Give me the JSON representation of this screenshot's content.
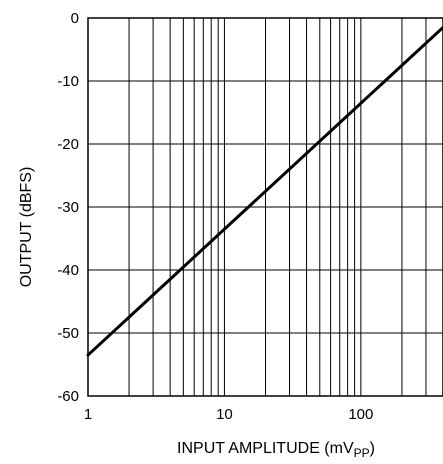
{
  "chart_data": {
    "type": "line",
    "x_scale": "log",
    "xlim": [
      1,
      400
    ],
    "ylim": [
      -60,
      0
    ],
    "grid": true,
    "xlabel_main": "INPUT AMPLITUDE (mV",
    "xlabel_sub": "PP",
    "xlabel_close": ")",
    "ylabel": "OUTPUT (dBFS)",
    "x_ticks": [
      1,
      10,
      100
    ],
    "x_tick_labels": [
      "1",
      "10",
      "100"
    ],
    "y_ticks": [
      0,
      -10,
      -20,
      -30,
      -40,
      -50,
      -60
    ],
    "y_tick_labels": [
      "0",
      "-10",
      "-20",
      "-30",
      "-40",
      "-50",
      "-60"
    ],
    "series": [
      {
        "x": [
          1,
          400
        ],
        "y": [
          -53.5,
          -1.5
        ]
      }
    ]
  }
}
